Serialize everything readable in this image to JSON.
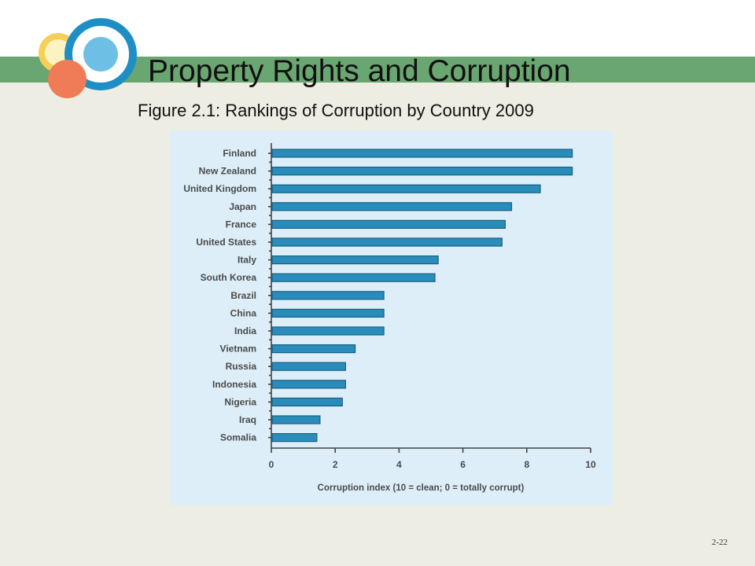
{
  "slide": {
    "title": "Property Rights and Corruption",
    "subtitle": "Figure 2.1: Rankings of Corruption by Country 2009",
    "page_number": "2-22"
  },
  "colors": {
    "background": "#eeede3",
    "band": "#6aa671",
    "chart_panel": "#ddeef9",
    "bar": "#2a8cbb"
  },
  "chart_data": {
    "type": "bar",
    "orientation": "horizontal",
    "categories": [
      "Finland",
      "New Zealand",
      "United Kingdom",
      "Japan",
      "France",
      "United States",
      "Italy",
      "South Korea",
      "Brazil",
      "China",
      "India",
      "Vietnam",
      "Russia",
      "Indonesia",
      "Nigeria",
      "Iraq",
      "Somalia"
    ],
    "values": [
      9.4,
      9.4,
      8.4,
      7.5,
      7.3,
      7.2,
      5.2,
      5.1,
      3.5,
      3.5,
      3.5,
      2.6,
      2.3,
      2.3,
      2.2,
      1.5,
      1.4
    ],
    "xlabel": "Corruption index (10 = clean; 0 = totally corrupt)",
    "ylabel": "",
    "xlim": [
      0,
      10
    ],
    "xticks": [
      "0",
      "2",
      "4",
      "6",
      "8",
      "10"
    ],
    "grid": false,
    "legend": "none"
  }
}
